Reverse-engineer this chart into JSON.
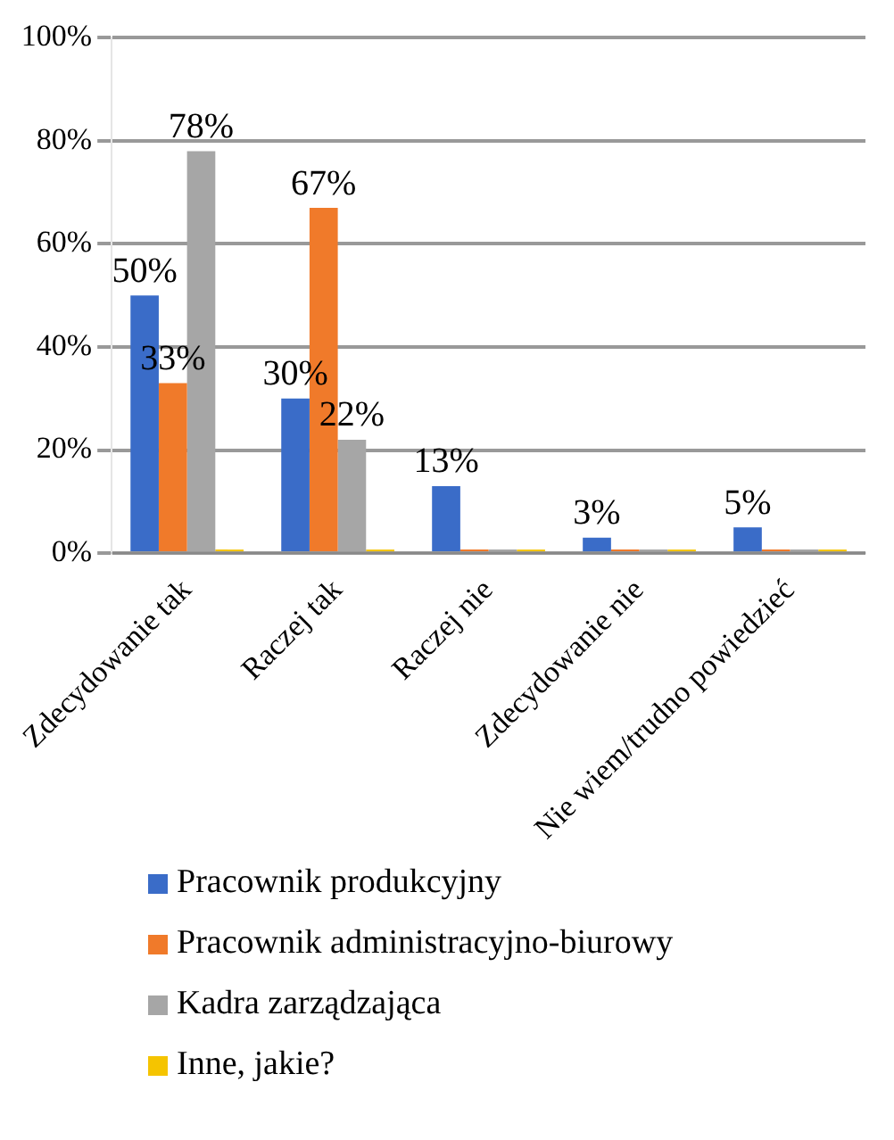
{
  "chart_data": {
    "type": "bar",
    "categories": [
      "Zdecydowanie tak",
      "Raczej tak",
      "Raczej nie",
      "Zdecydowanie nie",
      "Nie wiem/trudno powiedzieć"
    ],
    "series": [
      {
        "name": "Pracownik produkcyjny",
        "color": "#3a6cc8",
        "values": [
          50,
          30,
          13,
          3,
          5
        ],
        "value_labels": [
          "50%",
          "30%",
          "13%",
          "3%",
          "5%"
        ]
      },
      {
        "name": "Pracownik administracyjno-biurowy",
        "color": "#f07a2a",
        "values": [
          33,
          67,
          0,
          0,
          0
        ],
        "value_labels": [
          "33%",
          "67%",
          null,
          null,
          null
        ]
      },
      {
        "name": "Kadra zarządzająca",
        "color": "#a6a6a6",
        "values": [
          78,
          22,
          0,
          0,
          0
        ],
        "value_labels": [
          "78%",
          "22%",
          null,
          null,
          null
        ]
      },
      {
        "name": "Inne, jakie?",
        "color": "#f5c400",
        "values": [
          0,
          0,
          0,
          0,
          0
        ]
      }
    ],
    "ylim": [
      0,
      100
    ],
    "yticks": [
      {
        "value": 0,
        "label": "0%"
      },
      {
        "value": 20,
        "label": "20%"
      },
      {
        "value": 40,
        "label": "40%"
      },
      {
        "value": 60,
        "label": "60%"
      },
      {
        "value": 80,
        "label": "80%"
      },
      {
        "value": 100,
        "label": "100%"
      }
    ],
    "grid": "y",
    "legend": "bottom"
  }
}
